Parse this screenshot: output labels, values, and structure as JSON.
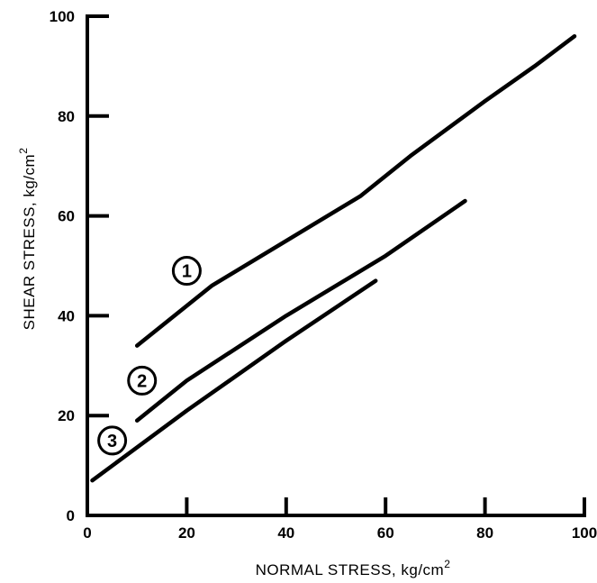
{
  "chart_data": {
    "type": "line",
    "title": "",
    "xlabel": "NORMAL STRESS, kg/cm",
    "xlabel_sup": "2",
    "ylabel": "SHEAR STRESS, kg/cm",
    "ylabel_sup": "2",
    "xlim": [
      0,
      100
    ],
    "ylim": [
      0,
      100
    ],
    "xticks": [
      0,
      20,
      40,
      60,
      80,
      100
    ],
    "yticks": [
      0,
      20,
      40,
      60,
      80,
      100
    ],
    "grid": false,
    "series": [
      {
        "label": "1",
        "label_pos": [
          20,
          49
        ],
        "x": [
          10,
          15,
          25,
          40,
          55,
          65,
          80,
          90,
          98
        ],
        "y": [
          34,
          38,
          46,
          55,
          64,
          72,
          83,
          90,
          96
        ]
      },
      {
        "label": "2",
        "label_pos": [
          11,
          27
        ],
        "x": [
          10,
          20,
          40,
          60,
          76
        ],
        "y": [
          19,
          27,
          40,
          52,
          63
        ]
      },
      {
        "label": "3",
        "label_pos": [
          5,
          15
        ],
        "x": [
          1,
          20,
          40,
          58
        ],
        "y": [
          7,
          21,
          35,
          47
        ]
      }
    ]
  }
}
